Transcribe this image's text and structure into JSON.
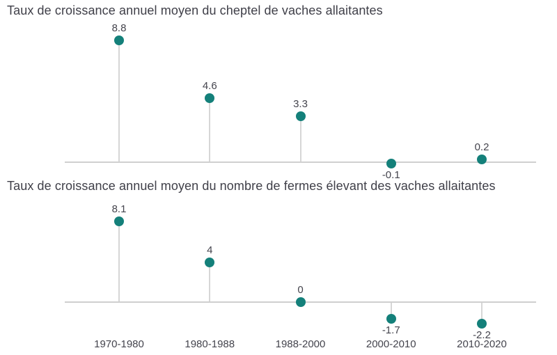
{
  "figure": {
    "background": "#ffffff"
  },
  "chart_data": [
    {
      "type": "lollipop",
      "title": "Taux de croissance annuel moyen du cheptel de vaches allaitantes",
      "categories": [
        "1970-1980",
        "1980-1988",
        "1988-2000",
        "2000-2010",
        "2010-2020"
      ],
      "values": [
        8.8,
        4.6,
        3.3,
        -0.1,
        0.2
      ],
      "value_labels": [
        "8.8",
        "4.6",
        "3.3",
        "-0.1",
        "0.2"
      ],
      "xlabel": "",
      "ylabel": "",
      "ylim": [
        -1.5,
        9.5
      ],
      "grid": false,
      "legend": false,
      "show_x_tick_labels": false,
      "colors": {
        "dot": "#14807a",
        "stem": "#d6d6d6",
        "baseline": "#cfcfcf",
        "text": "#44444d"
      }
    },
    {
      "type": "lollipop",
      "title": "Taux de croissance annuel moyen du nombre de fermes élevant des vaches allaitantes",
      "categories": [
        "1970-1980",
        "1980-1988",
        "1988-2000",
        "2000-2010",
        "2010-2020"
      ],
      "values": [
        8.1,
        4,
        0,
        -1.7,
        -2.2
      ],
      "value_labels": [
        "8.1",
        "4",
        "0",
        "-1.7",
        "-2.2"
      ],
      "xlabel": "",
      "ylabel": "",
      "ylim": [
        -3.5,
        10
      ],
      "grid": false,
      "legend": false,
      "show_x_tick_labels": true,
      "colors": {
        "dot": "#14807a",
        "stem": "#d6d6d6",
        "baseline": "#cfcfcf",
        "text": "#44444d"
      }
    }
  ]
}
